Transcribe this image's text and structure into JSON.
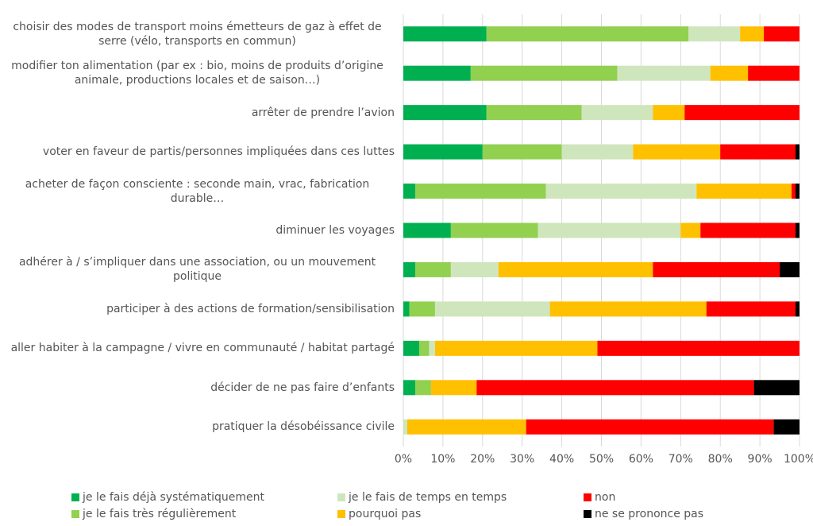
{
  "chart_data": {
    "type": "stacked-bar-horizontal",
    "categories": [
      "choisir des modes de transport moins émetteurs de gaz à effet de serre (vélo, transports en commun)",
      "modifier ton alimentation (par ex : bio, moins de produits d’origine animale, productions locales et de saison…)",
      "arrêter de prendre l’avion",
      "voter en faveur de partis/personnes impliquées dans ces luttes",
      "acheter de façon consciente : seconde main, vrac, fabrication durable…",
      "diminuer les voyages",
      "adhérer à / s’impliquer dans une association, ou un mouvement politique",
      "participer à des actions de formation/sensibilisation",
      "aller habiter à la campagne / vivre en communauté / habitat partagé",
      "décider de ne pas faire d’enfants",
      "pratiquer la désobéissance civile"
    ],
    "series": [
      {
        "name": "je le fais déjà systématiquement",
        "color": "#00b050",
        "values": [
          21,
          17,
          21,
          20,
          3,
          12,
          3,
          1.5,
          4,
          3,
          0
        ]
      },
      {
        "name": "je le fais très régulièrement",
        "color": "#92d050",
        "values": [
          51,
          37,
          24,
          20,
          33,
          22,
          9,
          6.5,
          2.5,
          4,
          0
        ]
      },
      {
        "name": "je le fais de temps en temps",
        "color": "#cfe6bd",
        "values": [
          13,
          23.5,
          18,
          18,
          38,
          36,
          12,
          29,
          1.5,
          0,
          1
        ]
      },
      {
        "name": "pourquoi pas",
        "color": "#ffc000",
        "values": [
          6,
          9.5,
          8,
          22,
          24,
          5,
          39,
          39.5,
          41,
          11.5,
          30
        ]
      },
      {
        "name": "non",
        "color": "#ff0000",
        "values": [
          9,
          13,
          29,
          19,
          1,
          24,
          32,
          22.5,
          51,
          70,
          62.5
        ]
      },
      {
        "name": "ne se prononce pas",
        "color": "#000000",
        "values": [
          0,
          0,
          0,
          1,
          1,
          1,
          5,
          1,
          0,
          11.5,
          6.5
        ]
      }
    ],
    "xlim": [
      0,
      100
    ],
    "xticks": [
      {
        "value": 0,
        "label": "0%"
      },
      {
        "value": 10,
        "label": "10%"
      },
      {
        "value": 20,
        "label": "20%"
      },
      {
        "value": 30,
        "label": "30%"
      },
      {
        "value": 40,
        "label": "40%"
      },
      {
        "value": 50,
        "label": "50%"
      },
      {
        "value": 60,
        "label": "60%"
      },
      {
        "value": 70,
        "label": "70%"
      },
      {
        "value": 80,
        "label": "80%"
      },
      {
        "value": 90,
        "label": "90%"
      },
      {
        "value": 100,
        "label": "100%"
      }
    ],
    "grid": true,
    "legend": "bottom"
  }
}
